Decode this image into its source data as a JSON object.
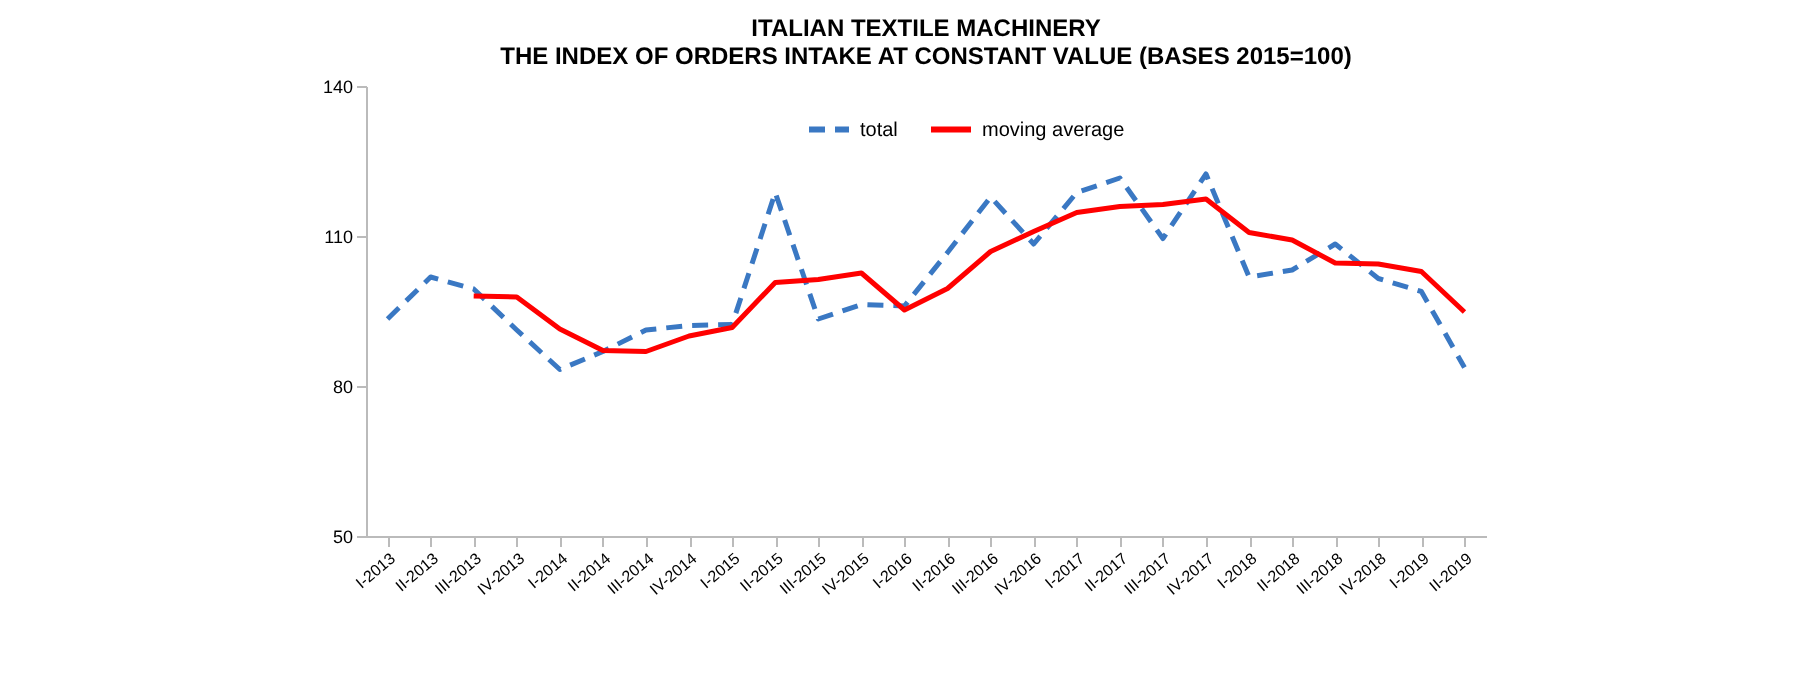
{
  "chart_data": {
    "type": "line",
    "title": "ITALIAN TEXTILE MACHINERY\nTHE INDEX OF ORDERS INTAKE AT CONSTANT VALUE (BASES 2015=100)",
    "categories": [
      "I-2013",
      "II-2013",
      "III-2013",
      "IV-2013",
      "I-2014",
      "II-2014",
      "III-2014",
      "IV-2014",
      "I-2015",
      "II-2015",
      "III-2015",
      "IV-2015",
      "I-2016",
      "II-2016",
      "III-2016",
      "IV-2016",
      "I-2017",
      "II-2017",
      "III-2017",
      "IV-2017",
      "I-2018",
      "II-2018",
      "III-2018",
      "IV-2018",
      "I-2019",
      "II-2019"
    ],
    "series": [
      {
        "name": "total",
        "color": "#3a78c3",
        "line_style": "dashed",
        "values": [
          93.4,
          101.8,
          99.4,
          91.2,
          83.3,
          86.9,
          91.2,
          92.1,
          92.3,
          118.7,
          93.4,
          96.3,
          96.0,
          106.7,
          117.8,
          108.4,
          118.7,
          121.6,
          109.5,
          122.4,
          101.8,
          103.2,
          108.4,
          101.5,
          98.9,
          83.7
        ]
      },
      {
        "name": "moving average",
        "color": "#ff0000",
        "line_style": "solid",
        "values": [
          null,
          null,
          98.0,
          97.8,
          91.4,
          87.1,
          86.9,
          90.0,
          91.7,
          100.7,
          101.3,
          102.6,
          95.2,
          99.5,
          106.9,
          110.9,
          114.7,
          115.9,
          116.3,
          117.4,
          110.7,
          109.2,
          104.6,
          104.4,
          102.9,
          94.8
        ]
      }
    ],
    "ylim": [
      50,
      140
    ],
    "yticks": [
      50,
      80,
      110,
      140
    ],
    "grid": false,
    "legend": "top",
    "marker": "none"
  }
}
